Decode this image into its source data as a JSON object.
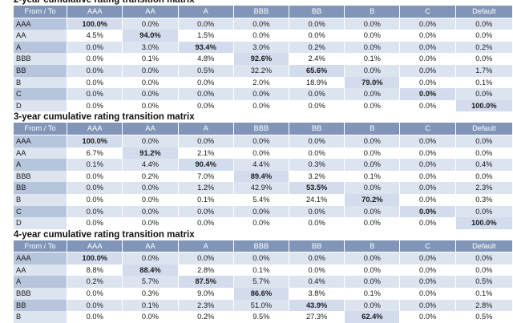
{
  "columns": [
    "From / To",
    "AAA",
    "AA",
    "A",
    "BBB",
    "BB",
    "B",
    "C",
    "Default"
  ],
  "matrices": [
    {
      "title": "2-year cumulative rating transition matrix",
      "rows": [
        {
          "label": "AAA",
          "values": [
            "100.0%",
            "0.0%",
            "0.0%",
            "0.0%",
            "0.0%",
            "0.0%",
            "0.0%",
            "0.0%"
          ]
        },
        {
          "label": "AA",
          "values": [
            "4.5%",
            "94.0%",
            "1.5%",
            "0.0%",
            "0.0%",
            "0.0%",
            "0.0%",
            "0.0%"
          ]
        },
        {
          "label": "A",
          "values": [
            "0.0%",
            "3.0%",
            "93.4%",
            "3.0%",
            "0.2%",
            "0.0%",
            "0.0%",
            "0.2%"
          ]
        },
        {
          "label": "BBB",
          "values": [
            "0.0%",
            "0.1%",
            "4.8%",
            "92.6%",
            "2.4%",
            "0.1%",
            "0.0%",
            "0.0%"
          ]
        },
        {
          "label": "BB",
          "values": [
            "0.0%",
            "0.0%",
            "0.5%",
            "32.2%",
            "65.6%",
            "0.0%",
            "0.0%",
            "1.7%"
          ]
        },
        {
          "label": "B",
          "values": [
            "0.0%",
            "0.0%",
            "0.0%",
            "2.0%",
            "18.9%",
            "79.0%",
            "0.0%",
            "0.1%"
          ]
        },
        {
          "label": "C",
          "values": [
            "0.0%",
            "0.0%",
            "0.0%",
            "0.0%",
            "0.0%",
            "0.0%",
            "0.0%",
            "0.0%"
          ]
        },
        {
          "label": "D",
          "values": [
            "0.0%",
            "0.0%",
            "0.0%",
            "0.0%",
            "0.0%",
            "0.0%",
            "0.0%",
            "100.0%"
          ]
        }
      ]
    },
    {
      "title": "3-year cumulative rating transition matrix",
      "rows": [
        {
          "label": "AAA",
          "values": [
            "100.0%",
            "0.0%",
            "0.0%",
            "0.0%",
            "0.0%",
            "0.0%",
            "0.0%",
            "0.0%"
          ]
        },
        {
          "label": "AA",
          "values": [
            "6.7%",
            "91.2%",
            "2.1%",
            "0.0%",
            "0.0%",
            "0.0%",
            "0.0%",
            "0.0%"
          ]
        },
        {
          "label": "A",
          "values": [
            "0.1%",
            "4.4%",
            "90.4%",
            "4.4%",
            "0.3%",
            "0.0%",
            "0.0%",
            "0.4%"
          ]
        },
        {
          "label": "BBB",
          "values": [
            "0.0%",
            "0.2%",
            "7.0%",
            "89.4%",
            "3.2%",
            "0.1%",
            "0.0%",
            "0.0%"
          ]
        },
        {
          "label": "BB",
          "values": [
            "0.0%",
            "0.0%",
            "1.2%",
            "42.9%",
            "53.5%",
            "0.0%",
            "0.0%",
            "2.3%"
          ]
        },
        {
          "label": "B",
          "values": [
            "0.0%",
            "0.0%",
            "0.1%",
            "5.4%",
            "24.1%",
            "70.2%",
            "0.0%",
            "0.3%"
          ]
        },
        {
          "label": "C",
          "values": [
            "0.0%",
            "0.0%",
            "0.0%",
            "0.0%",
            "0.0%",
            "0.0%",
            "0.0%",
            "0.0%"
          ]
        },
        {
          "label": "D",
          "values": [
            "0.0%",
            "0.0%",
            "0.0%",
            "0.0%",
            "0.0%",
            "0.0%",
            "0.0%",
            "100.0%"
          ]
        }
      ]
    },
    {
      "title": "4-year cumulative rating transition matrix",
      "rows": [
        {
          "label": "AAA",
          "values": [
            "100.0%",
            "0.0%",
            "0.0%",
            "0.0%",
            "0.0%",
            "0.0%",
            "0.0%",
            "0.0%"
          ]
        },
        {
          "label": "AA",
          "values": [
            "8.8%",
            "88.4%",
            "2.8%",
            "0.1%",
            "0.0%",
            "0.0%",
            "0.0%",
            "0.0%"
          ]
        },
        {
          "label": "A",
          "values": [
            "0.2%",
            "5.7%",
            "87.5%",
            "5.7%",
            "0.4%",
            "0.0%",
            "0.0%",
            "0.5%"
          ]
        },
        {
          "label": "BBB",
          "values": [
            "0.0%",
            "0.3%",
            "9.0%",
            "86.6%",
            "3.8%",
            "0.1%",
            "0.0%",
            "0.1%"
          ]
        },
        {
          "label": "BB",
          "values": [
            "0.0%",
            "0.1%",
            "2.3%",
            "51.0%",
            "43.9%",
            "0.0%",
            "0.0%",
            "2.8%"
          ]
        },
        {
          "label": "B",
          "values": [
            "0.0%",
            "0.0%",
            "0.2%",
            "9.5%",
            "27.3%",
            "62.4%",
            "0.0%",
            "0.5%"
          ]
        }
      ]
    }
  ],
  "colors": {
    "header_bg": "#8095b7",
    "header_text": "#ffffff",
    "row_label_odd": "#b6c4dc",
    "row_label_even": "#dce4f0",
    "cell_band": "#dce4f0",
    "diagonal": "#d2dced"
  }
}
